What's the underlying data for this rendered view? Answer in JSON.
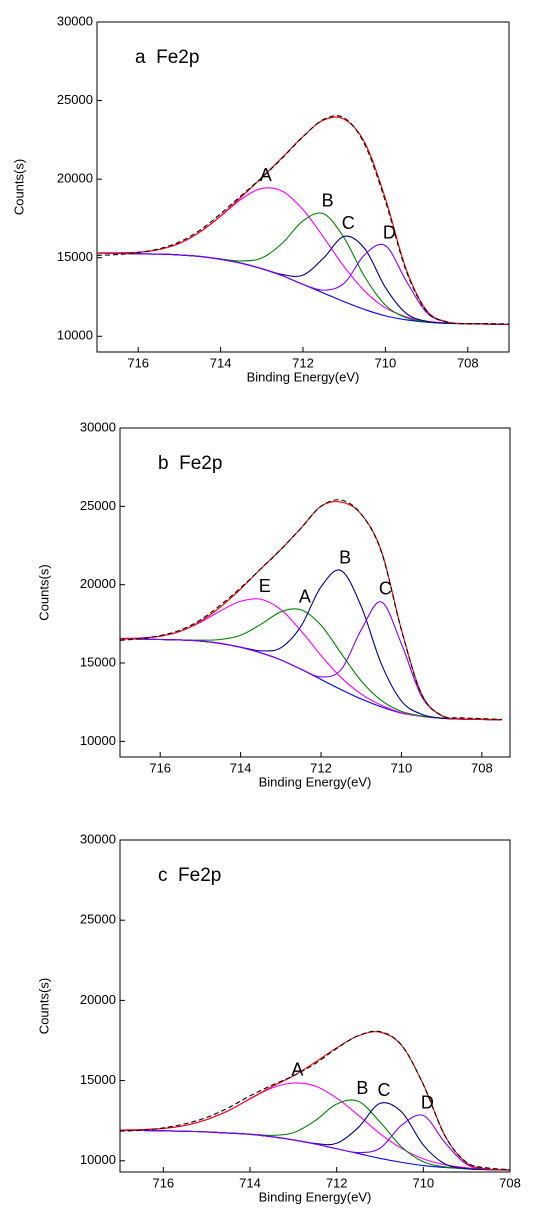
{
  "chart_data": [
    {
      "type": "line",
      "title": "a  Fe2p",
      "xlabel": "Binding Energy(eV)",
      "ylabel": "Counts(s)",
      "xlim": [
        717,
        707
      ],
      "ylim": [
        9000,
        30000
      ],
      "xticks": [
        716,
        714,
        712,
        710,
        708
      ],
      "yticks": [
        10000,
        15000,
        20000,
        25000,
        30000
      ],
      "x": [
        717,
        716.5,
        716,
        715.5,
        715,
        714.5,
        714,
        713.5,
        713,
        712.5,
        712,
        711.5,
        711,
        710.5,
        710,
        709.5,
        709,
        708.5,
        708,
        707.5,
        707
      ],
      "series": [
        {
          "color": "#0000ff",
          "values": [
            15300,
            15280,
            15250,
            15230,
            15180,
            15080,
            14900,
            14650,
            14300,
            13850,
            13300,
            12750,
            12200,
            11700,
            11300,
            11050,
            10900,
            10830,
            10800,
            10780,
            10750
          ]
        },
        {
          "name": "A",
          "color": "#ff00ff",
          "values": [
            15306,
            15307,
            15347,
            15516,
            15910,
            16640,
            17640,
            18720,
            19410,
            19230,
            18060,
            16300,
            14420,
            12870,
            11810,
            11244,
            10960,
            10846,
            10800,
            10780,
            10750
          ]
        },
        {
          "name": "B",
          "color": "#008000",
          "values": [
            15300,
            15280,
            15250,
            15230,
            15180,
            15080,
            14920,
            14790,
            14980,
            15930,
            17350,
            17800,
            16250,
            13780,
            11980,
            11190,
            10920,
            10830,
            10800,
            10780,
            10750
          ]
        },
        {
          "name": "C",
          "color": "#000080",
          "values": [
            15300,
            15280,
            15250,
            15230,
            15180,
            15080,
            14900,
            14650,
            14300,
            13930,
            13890,
            14980,
            16360,
            15570,
            13110,
            11470,
            10950,
            10830,
            10800,
            10780,
            10750
          ]
        },
        {
          "name": "D",
          "color": "#8000ff",
          "values": [
            15300,
            15280,
            15250,
            15230,
            15180,
            15080,
            14900,
            14650,
            14300,
            13850,
            13310,
            12930,
            13380,
            15200,
            15770,
            13550,
            11510,
            10900,
            10800,
            10780,
            10750
          ]
        },
        {
          "color": "#ff0000",
          "values": [
            15306,
            15307,
            15347,
            15516,
            15910,
            16640,
            17660,
            18860,
            20090,
            21390,
            22710,
            23760,
            23810,
            22320,
            18770,
            14300,
            11640,
            10916,
            10800,
            10780,
            10750
          ]
        },
        {
          "color": "#000000",
          "dashed": true,
          "values": [
            15150,
            15200,
            15330,
            15560,
            16000,
            16750,
            17800,
            18950,
            20100,
            21350,
            22700,
            23800,
            23900,
            22200,
            18600,
            14200,
            11600,
            10900,
            10800,
            10800,
            10780
          ]
        }
      ]
    },
    {
      "type": "line",
      "title": "b  Fe2p",
      "xlabel": "Binding Energy(eV)",
      "ylabel": "Counts(s)",
      "xlim": [
        717,
        707.3
      ],
      "ylim": [
        9000,
        30000
      ],
      "xticks": [
        716,
        714,
        712,
        710,
        708
      ],
      "yticks": [
        10000,
        15000,
        20000,
        25000,
        30000
      ],
      "x": [
        717,
        716.5,
        716,
        715.5,
        715,
        714.5,
        714,
        713.5,
        713,
        712.5,
        712,
        711.5,
        711,
        710.5,
        710,
        709.5,
        709,
        708.5,
        708,
        707.5
      ],
      "series": [
        {
          "color": "#0000ff",
          "values": [
            16550,
            16530,
            16500,
            16470,
            16400,
            16250,
            16000,
            15650,
            15200,
            14600,
            13950,
            13300,
            12700,
            12200,
            11800,
            11600,
            11480,
            11420,
            11400,
            11380
          ]
        },
        {
          "name": "E",
          "color": "#ff00ff",
          "values": [
            16566,
            16594,
            16710,
            17025,
            17600,
            18330,
            18940,
            19070,
            18410,
            17060,
            15480,
            14070,
            13020,
            12310,
            11830,
            11600,
            11480,
            11420,
            11400,
            11380
          ]
        },
        {
          "name": "A",
          "color": "#008000",
          "values": [
            16550,
            16530,
            16500,
            16470,
            16457,
            16500,
            16770,
            17460,
            18260,
            18400,
            17410,
            15620,
            13850,
            12610,
            11910,
            11620,
            11480,
            11420,
            11400,
            11380
          ]
        },
        {
          "name": "B",
          "color": "#000080",
          "values": [
            16550,
            16530,
            16500,
            16470,
            16400,
            16250,
            16013,
            15780,
            15970,
            17340,
            19860,
            20900,
            18610,
            14940,
            12570,
            11730,
            11480,
            11420,
            11400,
            11380
          ]
        },
        {
          "name": "C",
          "color": "#8000ff",
          "values": [
            16550,
            16530,
            16500,
            16470,
            16400,
            16250,
            16000,
            15650,
            15200,
            14610,
            14110,
            14580,
            17120,
            18900,
            16220,
            12880,
            11640,
            11430,
            11400,
            11380
          ]
        },
        {
          "color": "#ff0000",
          "values": [
            16566,
            16594,
            16710,
            17025,
            17657,
            18580,
            19720,
            21010,
            22240,
            23610,
            25010,
            25270,
            24500,
            22160,
            17130,
            13030,
            11640,
            11430,
            11400,
            11380
          ]
        },
        {
          "color": "#000000",
          "dashed": true,
          "values": [
            16450,
            16550,
            16750,
            17100,
            17750,
            18700,
            19800,
            21000,
            22250,
            23600,
            25000,
            25400,
            24500,
            22100,
            17100,
            13000,
            11650,
            11500,
            11450,
            11400
          ]
        }
      ]
    },
    {
      "type": "line",
      "title": "c  Fe2p",
      "xlabel": "Binding Energy(eV)",
      "ylabel": "Counts(s)",
      "xlim": [
        717,
        708
      ],
      "ylim": [
        9300,
        30000
      ],
      "xticks": [
        716,
        714,
        712,
        710,
        708
      ],
      "yticks": [
        10000,
        15000,
        20000,
        25000,
        30000
      ],
      "x": [
        717,
        716.5,
        716,
        715.5,
        715,
        714.5,
        714,
        713.5,
        713,
        712.5,
        712,
        711.5,
        711,
        710.5,
        710,
        709.5,
        709,
        708.5,
        708
      ],
      "series": [
        {
          "color": "#0000ff",
          "values": [
            11900,
            11890,
            11870,
            11840,
            11800,
            11730,
            11650,
            11500,
            11300,
            11050,
            10750,
            10450,
            10150,
            9900,
            9700,
            9580,
            9500,
            9450,
            9420
          ]
        },
        {
          "name": "A",
          "color": "#ff00ff",
          "values": [
            11915,
            11941,
            12016,
            12200,
            12566,
            13120,
            13860,
            14530,
            14850,
            14660,
            13910,
            12840,
            11690,
            10770,
            10120,
            9755,
            9562,
            9470,
            9425
          ]
        },
        {
          "name": "B",
          "color": "#008000",
          "values": [
            11900,
            11890,
            11870,
            11840,
            11800,
            11730,
            11659,
            11584,
            11745,
            12490,
            13540,
            13710,
            12420,
            10860,
            9940,
            9616,
            9500,
            9450,
            9420
          ]
        },
        {
          "name": "C",
          "color": "#000080",
          "values": [
            11900,
            11890,
            11870,
            11840,
            11800,
            11730,
            11650,
            11500,
            11300,
            11080,
            11090,
            12080,
            13580,
            13040,
            10980,
            9800,
            9517,
            9450,
            9420
          ]
        },
        {
          "name": "D",
          "color": "#8000ff",
          "values": [
            11900,
            11890,
            11870,
            11840,
            11800,
            11730,
            11650,
            11500,
            11300,
            11050,
            10750,
            10513,
            10780,
            12220,
            12820,
            11130,
            9780,
            9469,
            9420
          ]
        },
        {
          "color": "#ff0000",
          "values": [
            11915,
            11941,
            12016,
            12200,
            12566,
            13120,
            13869,
            14614,
            15295,
            16130,
            17042,
            17793,
            18020,
            17190,
            14760,
            11561,
            9859,
            9489,
            9425
          ]
        },
        {
          "color": "#000000",
          "dashed": true,
          "values": [
            11850,
            11900,
            12050,
            12300,
            12700,
            13300,
            14050,
            14700,
            15300,
            16050,
            17000,
            17800,
            18050,
            17200,
            14750,
            11550,
            9900,
            9550,
            9450
          ]
        }
      ]
    }
  ]
}
